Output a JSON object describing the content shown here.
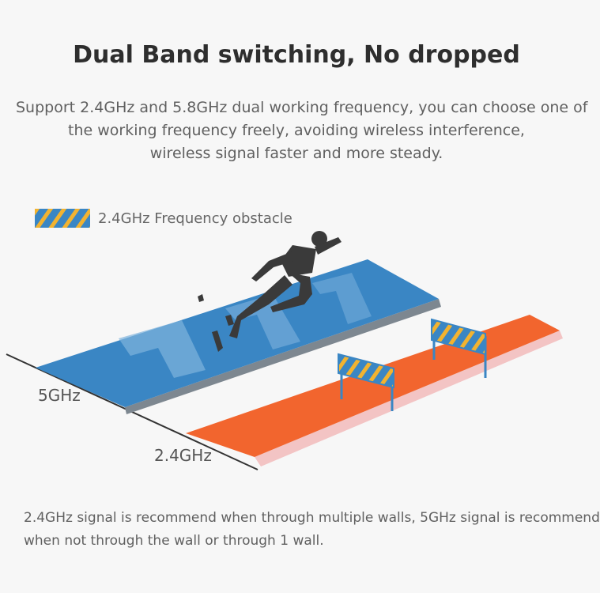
{
  "title": "Dual Band switching, No dropped",
  "subtitle_lines": [
    "Support 2.4GHz and 5.8GHz dual working frequency, you can choose one of",
    "the working frequency freely, avoiding wireless interference,",
    "wireless signal faster and more steady."
  ],
  "legend": {
    "label": "2.4GHz Frequency obstacle",
    "stripe_color": "#f2b330",
    "base_color": "#3a86c4"
  },
  "tracks": {
    "band_5ghz_label": "5GHz",
    "band_24ghz_label": "2.4GHz",
    "band_5ghz_color": "#3a86c4",
    "band_24ghz_color": "#f2652e"
  },
  "footer_lines": [
    "2.4GHz signal is recommend when through multiple walls, 5GHz signal is recommend",
    "when not through the wall or through 1 wall."
  ]
}
